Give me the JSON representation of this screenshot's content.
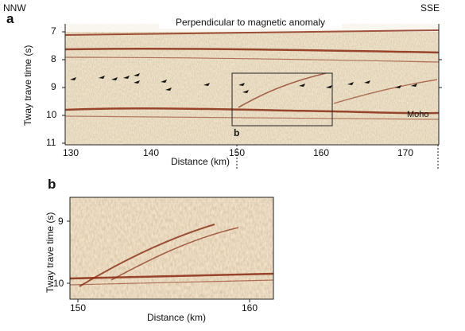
{
  "figure": {
    "panel_a": {
      "letter": "a",
      "left_label": "NNW",
      "right_label": "SSE",
      "banner": "Perpendicular to magnetic anomaly",
      "y_title": "Tway trave time (s)",
      "x_title": "Distance (km)",
      "y_ticks": [
        "7",
        "8",
        "9",
        "10",
        "11"
      ],
      "x_ticks": [
        "130",
        "140",
        "150",
        "160",
        "170"
      ],
      "inset_marker": "b",
      "moho_label": "Moho"
    },
    "panel_b": {
      "letter": "b",
      "y_title": "Tway trave time (s)",
      "x_title": "Distance (km)",
      "y_ticks": [
        "9",
        "10"
      ],
      "x_ticks": [
        "150",
        "160"
      ]
    },
    "colors": {
      "seismic_base": "#d8c49a",
      "reflector": "#8a2a12",
      "frame": "#222222"
    }
  }
}
